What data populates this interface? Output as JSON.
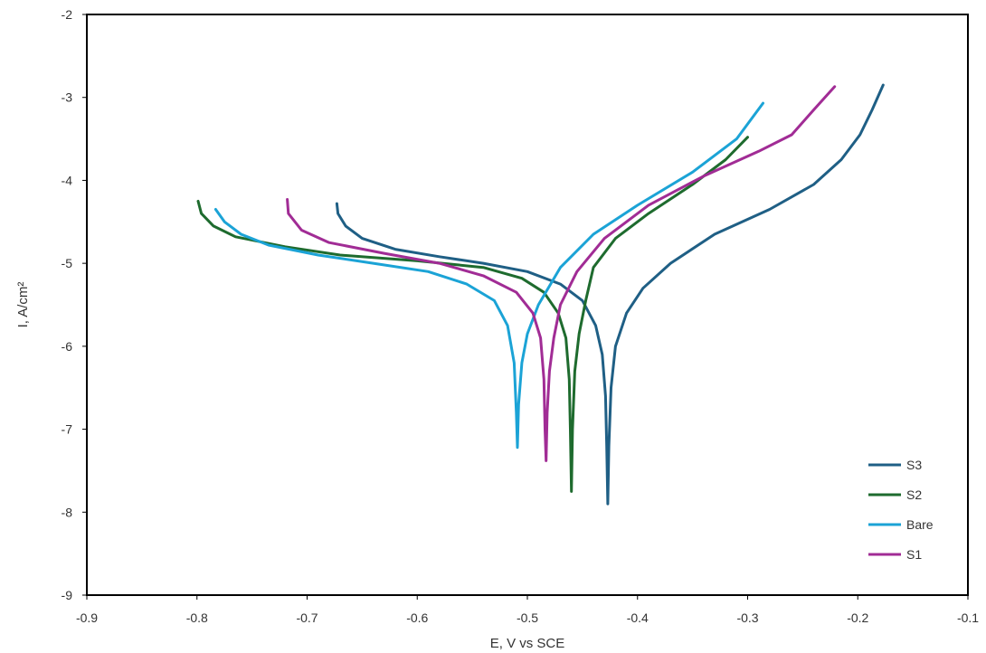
{
  "chart_data": {
    "type": "line",
    "title": "",
    "xlabel": "E, V vs SCE",
    "ylabel": "I, A/cm²",
    "xlim": [
      -0.9,
      -0.1
    ],
    "ylim": [
      -9,
      -2
    ],
    "x_ticks": [
      -0.9,
      -0.8,
      -0.7,
      -0.6,
      -0.5,
      -0.4,
      -0.3,
      -0.2,
      -0.1
    ],
    "x_tick_labels": [
      "-0.9",
      "-0.8",
      "-0.7",
      "-0.6",
      "-0.5",
      "-0.4",
      "-0.3",
      "-0.2",
      "-0.1"
    ],
    "y_ticks": [
      -2,
      -3,
      -4,
      -5,
      -6,
      -7,
      -8,
      -9
    ],
    "y_tick_labels": [
      "-2",
      "-3",
      "-4",
      "-5",
      "-6",
      "-7",
      "-8",
      "-9"
    ],
    "grid": false,
    "legend_position": "bottom-right",
    "series": [
      {
        "name": "S3",
        "color": "#1f5f85",
        "points": [
          [
            -0.673,
            -4.28
          ],
          [
            -0.672,
            -4.4
          ],
          [
            -0.665,
            -4.55
          ],
          [
            -0.65,
            -4.7
          ],
          [
            -0.62,
            -4.83
          ],
          [
            -0.58,
            -4.92
          ],
          [
            -0.54,
            -5.0
          ],
          [
            -0.5,
            -5.1
          ],
          [
            -0.47,
            -5.25
          ],
          [
            -0.45,
            -5.45
          ],
          [
            -0.438,
            -5.75
          ],
          [
            -0.432,
            -6.1
          ],
          [
            -0.429,
            -6.6
          ],
          [
            -0.428,
            -7.2
          ],
          [
            -0.427,
            -7.9
          ],
          [
            -0.426,
            -7.2
          ],
          [
            -0.424,
            -6.5
          ],
          [
            -0.42,
            -6.0
          ],
          [
            -0.41,
            -5.6
          ],
          [
            -0.395,
            -5.3
          ],
          [
            -0.37,
            -5.0
          ],
          [
            -0.33,
            -4.65
          ],
          [
            -0.28,
            -4.35
          ],
          [
            -0.24,
            -4.05
          ],
          [
            -0.215,
            -3.75
          ],
          [
            -0.198,
            -3.45
          ],
          [
            -0.187,
            -3.15
          ],
          [
            -0.177,
            -2.85
          ]
        ]
      },
      {
        "name": "S2",
        "color": "#1e6b2e",
        "points": [
          [
            -0.799,
            -4.25
          ],
          [
            -0.796,
            -4.4
          ],
          [
            -0.785,
            -4.55
          ],
          [
            -0.765,
            -4.68
          ],
          [
            -0.72,
            -4.8
          ],
          [
            -0.67,
            -4.9
          ],
          [
            -0.6,
            -4.97
          ],
          [
            -0.54,
            -5.05
          ],
          [
            -0.505,
            -5.18
          ],
          [
            -0.485,
            -5.35
          ],
          [
            -0.472,
            -5.6
          ],
          [
            -0.465,
            -5.9
          ],
          [
            -0.462,
            -6.4
          ],
          [
            -0.461,
            -7.0
          ],
          [
            -0.46,
            -7.75
          ],
          [
            -0.459,
            -7.0
          ],
          [
            -0.457,
            -6.3
          ],
          [
            -0.453,
            -5.85
          ],
          [
            -0.447,
            -5.45
          ],
          [
            -0.44,
            -5.05
          ],
          [
            -0.42,
            -4.7
          ],
          [
            -0.39,
            -4.4
          ],
          [
            -0.35,
            -4.05
          ],
          [
            -0.32,
            -3.75
          ],
          [
            -0.3,
            -3.48
          ]
        ]
      },
      {
        "name": "Bare",
        "color": "#1ba3d6",
        "points": [
          [
            -0.783,
            -4.35
          ],
          [
            -0.775,
            -4.5
          ],
          [
            -0.76,
            -4.65
          ],
          [
            -0.735,
            -4.78
          ],
          [
            -0.69,
            -4.9
          ],
          [
            -0.64,
            -5.0
          ],
          [
            -0.59,
            -5.1
          ],
          [
            -0.555,
            -5.25
          ],
          [
            -0.53,
            -5.45
          ],
          [
            -0.518,
            -5.75
          ],
          [
            -0.512,
            -6.2
          ],
          [
            -0.51,
            -6.8
          ],
          [
            -0.509,
            -7.22
          ],
          [
            -0.508,
            -6.7
          ],
          [
            -0.505,
            -6.2
          ],
          [
            -0.5,
            -5.85
          ],
          [
            -0.49,
            -5.5
          ],
          [
            -0.47,
            -5.05
          ],
          [
            -0.44,
            -4.65
          ],
          [
            -0.4,
            -4.3
          ],
          [
            -0.35,
            -3.9
          ],
          [
            -0.31,
            -3.5
          ],
          [
            -0.286,
            -3.07
          ]
        ]
      },
      {
        "name": "S1",
        "color": "#a12c95",
        "points": [
          [
            -0.718,
            -4.23
          ],
          [
            -0.717,
            -4.4
          ],
          [
            -0.705,
            -4.6
          ],
          [
            -0.68,
            -4.75
          ],
          [
            -0.63,
            -4.88
          ],
          [
            -0.58,
            -5.0
          ],
          [
            -0.54,
            -5.15
          ],
          [
            -0.51,
            -5.35
          ],
          [
            -0.495,
            -5.6
          ],
          [
            -0.488,
            -5.9
          ],
          [
            -0.485,
            -6.4
          ],
          [
            -0.484,
            -7.0
          ],
          [
            -0.483,
            -7.38
          ],
          [
            -0.482,
            -6.8
          ],
          [
            -0.48,
            -6.3
          ],
          [
            -0.476,
            -5.9
          ],
          [
            -0.47,
            -5.5
          ],
          [
            -0.455,
            -5.1
          ],
          [
            -0.43,
            -4.7
          ],
          [
            -0.39,
            -4.3
          ],
          [
            -0.34,
            -3.95
          ],
          [
            -0.29,
            -3.65
          ],
          [
            -0.26,
            -3.45
          ],
          [
            -0.24,
            -3.15
          ],
          [
            -0.221,
            -2.87
          ]
        ]
      }
    ]
  }
}
